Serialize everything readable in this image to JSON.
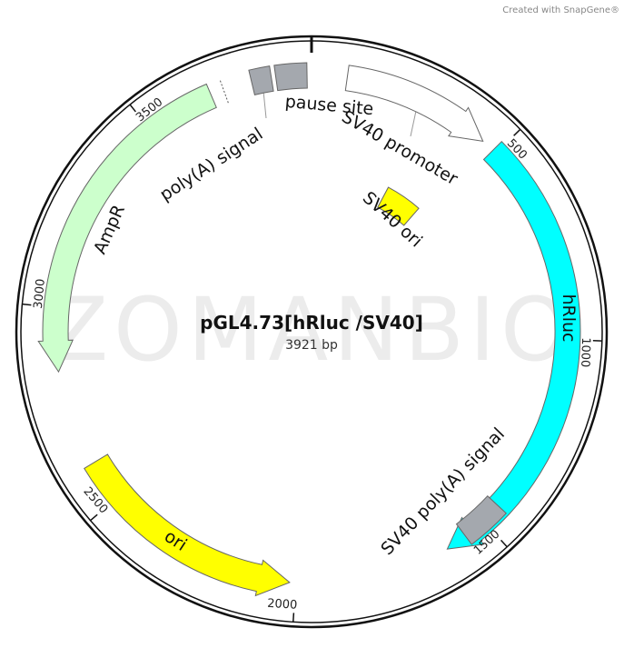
{
  "credit": "Created with SnapGene®",
  "watermark": "ZOMANBIO",
  "plasmid": {
    "name": "pGL4.73[hRluc /SV40]",
    "length": {
      "value": 3921,
      "label": "3921 bp"
    },
    "ticks": [
      500,
      1000,
      1500,
      2000,
      2500,
      3000,
      3500
    ],
    "features": [
      {
        "label": "pause site",
        "color": "#a4a8ae"
      },
      {
        "label": "poly(A) signal",
        "color": "#a4a8ae"
      },
      {
        "label": "SV40 promoter",
        "color": "#ffffff"
      },
      {
        "label": "SV40 ori",
        "color": "#ffff00"
      },
      {
        "label": "hRluc",
        "color": "#00ffff"
      },
      {
        "label": "SV40 poly(A) signal",
        "color": "#a4a8ae"
      },
      {
        "label": "ori",
        "color": "#ffff00"
      },
      {
        "label": "AmpR",
        "color": "#ccffcc"
      }
    ]
  }
}
